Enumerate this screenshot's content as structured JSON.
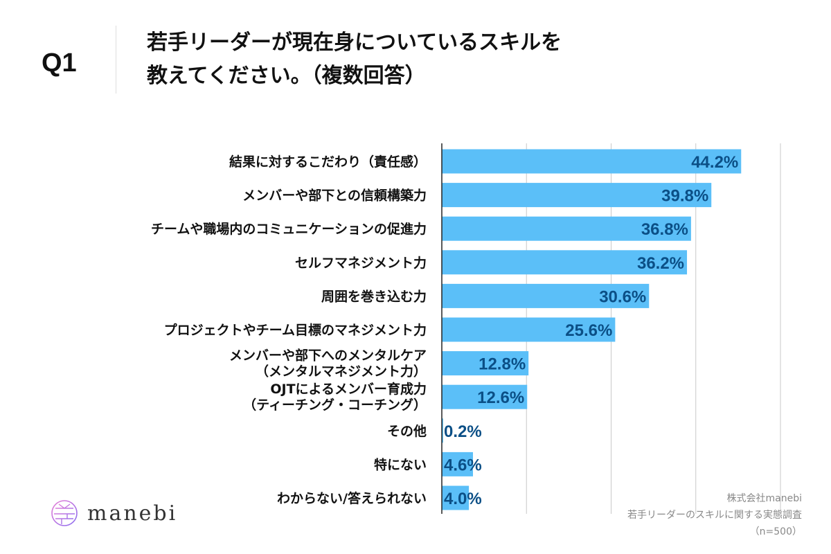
{
  "header": {
    "question_number": "Q1",
    "title_line1": "若手リーダーが現在身についているスキルを",
    "title_line2": "教えてください。（複数回答）"
  },
  "chart_data": {
    "type": "bar",
    "orientation": "horizontal",
    "title": "若手リーダーが現在身についているスキルを教えてください。（複数回答）",
    "xlabel": "",
    "ylabel": "",
    "xlim": [
      0,
      50
    ],
    "grid": true,
    "gridlines": [
      0,
      12.5,
      25,
      37.5,
      50
    ],
    "value_suffix": "%",
    "bar_color": "#5bbff8",
    "label_color": "#0b4f86",
    "categories": [
      [
        "結果に対するこだわり（責任感）"
      ],
      [
        "メンバーや部下との信頼構築力"
      ],
      [
        "チームや職場内のコミュニケーションの促進力"
      ],
      [
        "セルフマネジメント力"
      ],
      [
        "周囲を巻き込む力"
      ],
      [
        "プロジェクトやチーム目標のマネジメント力"
      ],
      [
        "メンバーや部下へのメンタルケア",
        "（メンタルマネジメント力）"
      ],
      [
        "OJTによるメンバー育成力",
        "（ティーチング・コーチング）"
      ],
      [
        "その他"
      ],
      [
        "特にない"
      ],
      [
        "わからない/答えられない"
      ]
    ],
    "values": [
      44.2,
      39.8,
      36.8,
      36.2,
      30.6,
      25.6,
      12.8,
      12.6,
      0.2,
      4.6,
      4.0
    ],
    "value_labels": [
      "44.2%",
      "39.8%",
      "36.8%",
      "36.2%",
      "30.6%",
      "25.6%",
      "12.8%",
      "12.6%",
      "0.2%",
      "4.6%",
      "4.0%"
    ]
  },
  "footer": {
    "company": "株式会社manebi",
    "survey": "若手リーダーのスキルに関する実態調査",
    "sample": "（n=500）",
    "logo_text": "manebi"
  }
}
